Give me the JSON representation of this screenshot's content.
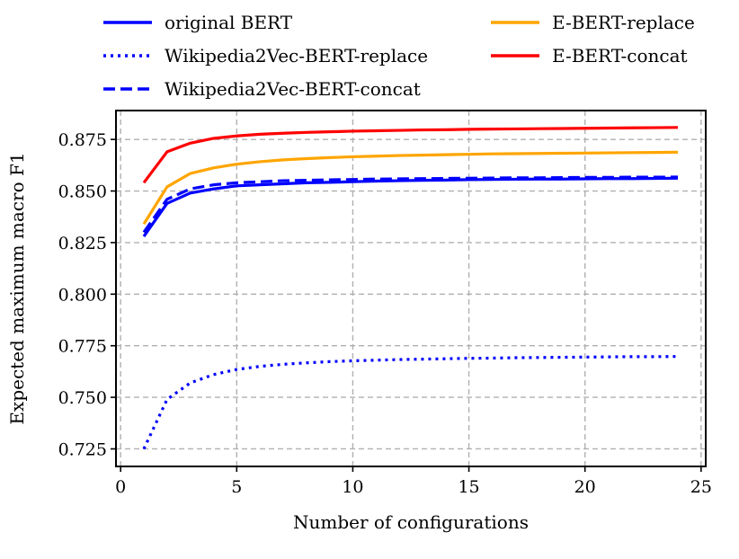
{
  "chart_data": {
    "type": "line",
    "title": "",
    "xlabel": "Number of configurations",
    "ylabel": "Expected maximum macro F1",
    "xlim": [
      -0.2,
      25.2
    ],
    "ylim": [
      0.7165,
      0.889
    ],
    "xticks": [
      0,
      5,
      10,
      15,
      20,
      25
    ],
    "xtick_labels": [
      "0",
      "5",
      "10",
      "15",
      "20",
      "25"
    ],
    "yticks": [
      0.725,
      0.75,
      0.775,
      0.8,
      0.825,
      0.85,
      0.875
    ],
    "ytick_labels": [
      "0.725",
      "0.750",
      "0.775",
      "0.800",
      "0.825",
      "0.850",
      "0.875"
    ],
    "grid": true,
    "legend_position": "top, above plot, two columns",
    "x": [
      1,
      2,
      3,
      4,
      5,
      6,
      7,
      8,
      9,
      10,
      11,
      12,
      13,
      14,
      15,
      16,
      17,
      18,
      19,
      20,
      21,
      22,
      23,
      24
    ],
    "series": [
      {
        "name": "original BERT",
        "color": "#0000ff",
        "style": "solid",
        "values": [
          0.828,
          0.844,
          0.849,
          0.851,
          0.8525,
          0.853,
          0.8535,
          0.854,
          0.8542,
          0.8545,
          0.8548,
          0.855,
          0.8552,
          0.8553,
          0.8555,
          0.8556,
          0.8557,
          0.8558,
          0.8558,
          0.8559,
          0.856,
          0.856,
          0.8561,
          0.8562
        ]
      },
      {
        "name": "Wikipedia2Vec-BERT-replace",
        "color": "#0000ff",
        "style": "dotted",
        "values": [
          0.725,
          0.749,
          0.757,
          0.761,
          0.7635,
          0.765,
          0.766,
          0.7667,
          0.7673,
          0.7677,
          0.768,
          0.7683,
          0.7685,
          0.7687,
          0.7689,
          0.769,
          0.7692,
          0.7693,
          0.7694,
          0.7695,
          0.7696,
          0.7697,
          0.7697,
          0.7698
        ]
      },
      {
        "name": "Wikipedia2Vec-BERT-concat",
        "color": "#0000ff",
        "style": "dashed",
        "values": [
          0.83,
          0.846,
          0.851,
          0.853,
          0.854,
          0.8545,
          0.855,
          0.8552,
          0.8554,
          0.8556,
          0.8558,
          0.8559,
          0.856,
          0.8561,
          0.8562,
          0.8563,
          0.8564,
          0.8564,
          0.8565,
          0.8566,
          0.8566,
          0.8567,
          0.8567,
          0.8568
        ]
      },
      {
        "name": "E-BERT-replace",
        "color": "#ffa500",
        "style": "solid",
        "values": [
          0.834,
          0.852,
          0.8585,
          0.8612,
          0.863,
          0.8642,
          0.8651,
          0.8657,
          0.8662,
          0.8666,
          0.8669,
          0.8672,
          0.8674,
          0.8676,
          0.8678,
          0.868,
          0.8681,
          0.8682,
          0.8683,
          0.8684,
          0.8685,
          0.8686,
          0.8687,
          0.8688
        ]
      },
      {
        "name": "E-BERT-concat",
        "color": "#ff0000",
        "style": "solid",
        "values": [
          0.854,
          0.869,
          0.8732,
          0.8755,
          0.8767,
          0.8775,
          0.878,
          0.8784,
          0.8787,
          0.879,
          0.8792,
          0.8794,
          0.8796,
          0.8797,
          0.8799,
          0.88,
          0.8801,
          0.8802,
          0.8803,
          0.8804,
          0.8805,
          0.8806,
          0.8807,
          0.8808
        ]
      }
    ]
  }
}
